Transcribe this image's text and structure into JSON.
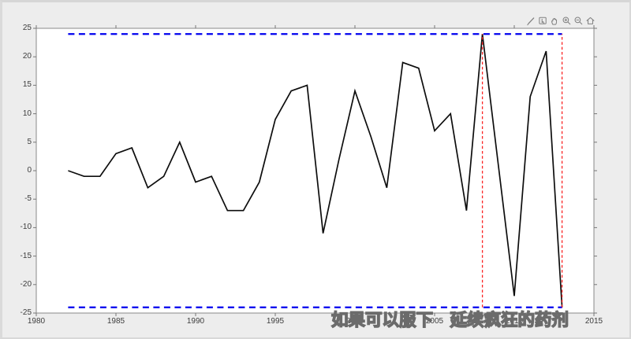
{
  "figure": {
    "background": "#ededed",
    "plot_background": "#ffffff",
    "axis_box_color": "#898989",
    "tick_color": "#777777",
    "tick_label_color": "#3d3d3d"
  },
  "toolbar": {
    "icon_color": "#6f6f6f",
    "icons": [
      {
        "name": "brush-icon"
      },
      {
        "name": "datatips-icon"
      },
      {
        "name": "pan-icon"
      },
      {
        "name": "zoom-in-icon"
      },
      {
        "name": "zoom-out-icon"
      },
      {
        "name": "restore-view-icon"
      }
    ]
  },
  "chart_data": {
    "type": "line",
    "title": "",
    "xlabel": "",
    "ylabel": "",
    "xlim": [
      1980,
      2015
    ],
    "ylim": [
      -25,
      25
    ],
    "xticks": [
      1980,
      1985,
      1990,
      1995,
      2000,
      2005,
      2010,
      2015
    ],
    "yticks": [
      -25,
      -20,
      -15,
      -10,
      -5,
      0,
      5,
      10,
      15,
      20,
      25
    ],
    "grid": false,
    "legend_position": "none",
    "series": [
      {
        "name": "main-line",
        "color": "#0d0d0d",
        "style": "solid",
        "width": 1.7,
        "x": [
          1982,
          1983,
          1984,
          1985,
          1986,
          1987,
          1988,
          1989,
          1990,
          1991,
          1992,
          1993,
          1994,
          1995,
          1996,
          1997,
          1998,
          1999,
          2000,
          2001,
          2002,
          2003,
          2004,
          2005,
          2006,
          2007,
          2008,
          2009,
          2010,
          2011,
          2012,
          2013
        ],
        "values": [
          0,
          -1,
          -1,
          3,
          4,
          -3,
          -1,
          5,
          -2,
          -1,
          -7,
          -7,
          -2,
          9,
          14,
          15,
          -11,
          2,
          14,
          6,
          -3,
          19,
          18,
          7,
          10,
          -7,
          24,
          1,
          -22,
          13,
          21,
          -24
        ]
      }
    ],
    "reference_lines": [
      {
        "name": "upper-bound-line",
        "orientation": "horizontal",
        "value": 24,
        "x_start": 1982,
        "x_end": 2013,
        "color": "#0000ee",
        "style": "dashed",
        "width": 2.2
      },
      {
        "name": "lower-bound-line",
        "orientation": "horizontal",
        "value": -24,
        "x_start": 1982,
        "x_end": 2013,
        "color": "#0000ee",
        "style": "dashed",
        "width": 2.2
      },
      {
        "name": "max-year-marker",
        "orientation": "vertical",
        "value": 2008,
        "y_start": -24,
        "y_end": 24,
        "color": "#fb2222",
        "style": "dashed",
        "width": 1.3
      },
      {
        "name": "min-year-marker",
        "orientation": "vertical",
        "value": 2013,
        "y_start": -24,
        "y_end": 24,
        "color": "#fb2222",
        "style": "dashed",
        "width": 1.3
      }
    ]
  },
  "overlay": {
    "subtitle": "如果可以服下　延续疯狂的药剂",
    "text_color": "#ffffff",
    "outline_color": "#6b6b6b"
  }
}
